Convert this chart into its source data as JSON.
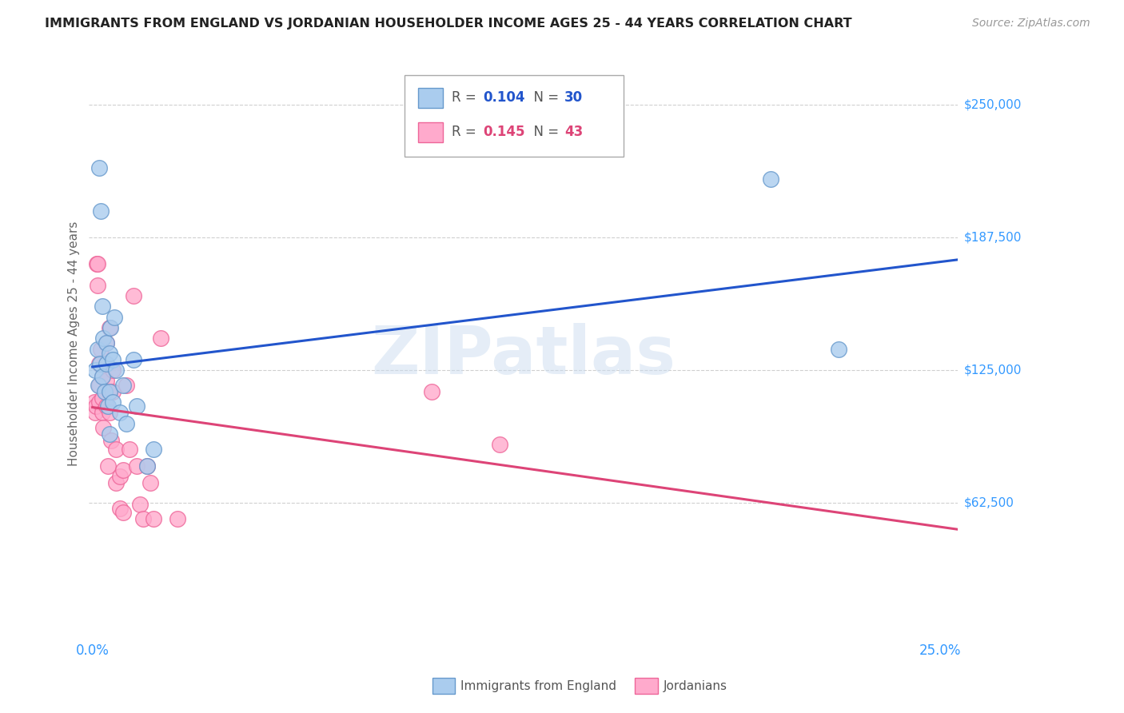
{
  "title": "IMMIGRANTS FROM ENGLAND VS JORDANIAN HOUSEHOLDER INCOME AGES 25 - 44 YEARS CORRELATION CHART",
  "source": "Source: ZipAtlas.com",
  "ylabel": "Householder Income Ages 25 - 44 years",
  "ytick_labels": [
    "$62,500",
    "$125,000",
    "$187,500",
    "$250,000"
  ],
  "ytick_vals": [
    62500,
    125000,
    187500,
    250000
  ],
  "ymin": 0,
  "ymax": 275000,
  "xmin": -0.001,
  "xmax": 0.255,
  "legend1_R": "0.104",
  "legend1_N": "30",
  "legend2_R": "0.145",
  "legend2_N": "43",
  "watermark": "ZIPatlas",
  "background_color": "#ffffff",
  "grid_color": "#d0d0d0",
  "title_color": "#222222",
  "axis_label_color": "#666666",
  "right_tick_color": "#3399ff",
  "bottom_tick_color": "#3399ff",
  "blue_line_color": "#2255cc",
  "pink_line_color": "#dd4477",
  "blue_dot_fill": "#aaccee",
  "blue_dot_edge": "#6699cc",
  "pink_dot_fill": "#ffaacc",
  "pink_dot_edge": "#ee6699",
  "eng_x": [
    0.0008,
    0.0015,
    0.0018,
    0.002,
    0.0022,
    0.0025,
    0.003,
    0.003,
    0.0032,
    0.0035,
    0.004,
    0.0042,
    0.0045,
    0.005,
    0.005,
    0.0052,
    0.006,
    0.006,
    0.0065,
    0.007,
    0.008,
    0.009,
    0.01,
    0.012,
    0.013,
    0.016,
    0.018,
    0.2,
    0.22,
    0.005
  ],
  "eng_y": [
    125000,
    135000,
    118000,
    220000,
    128000,
    200000,
    122000,
    155000,
    140000,
    115000,
    128000,
    138000,
    108000,
    133000,
    115000,
    145000,
    130000,
    110000,
    150000,
    125000,
    105000,
    118000,
    100000,
    130000,
    108000,
    80000,
    88000,
    215000,
    135000,
    95000
  ],
  "jor_x": [
    0.0005,
    0.0008,
    0.001,
    0.0012,
    0.0015,
    0.0015,
    0.002,
    0.002,
    0.002,
    0.0025,
    0.003,
    0.003,
    0.003,
    0.0032,
    0.004,
    0.004,
    0.0042,
    0.0045,
    0.005,
    0.005,
    0.0055,
    0.006,
    0.006,
    0.007,
    0.007,
    0.008,
    0.008,
    0.009,
    0.009,
    0.01,
    0.011,
    0.012,
    0.013,
    0.014,
    0.015,
    0.016,
    0.017,
    0.018,
    0.02,
    0.025,
    0.1,
    0.12,
    0.005
  ],
  "jor_y": [
    110000,
    105000,
    108000,
    175000,
    165000,
    175000,
    128000,
    118000,
    110000,
    135000,
    122000,
    112000,
    105000,
    98000,
    138000,
    120000,
    108000,
    80000,
    115000,
    105000,
    92000,
    125000,
    115000,
    88000,
    72000,
    75000,
    60000,
    78000,
    58000,
    118000,
    88000,
    160000,
    80000,
    62000,
    55000,
    80000,
    72000,
    55000,
    140000,
    55000,
    115000,
    90000,
    145000
  ]
}
